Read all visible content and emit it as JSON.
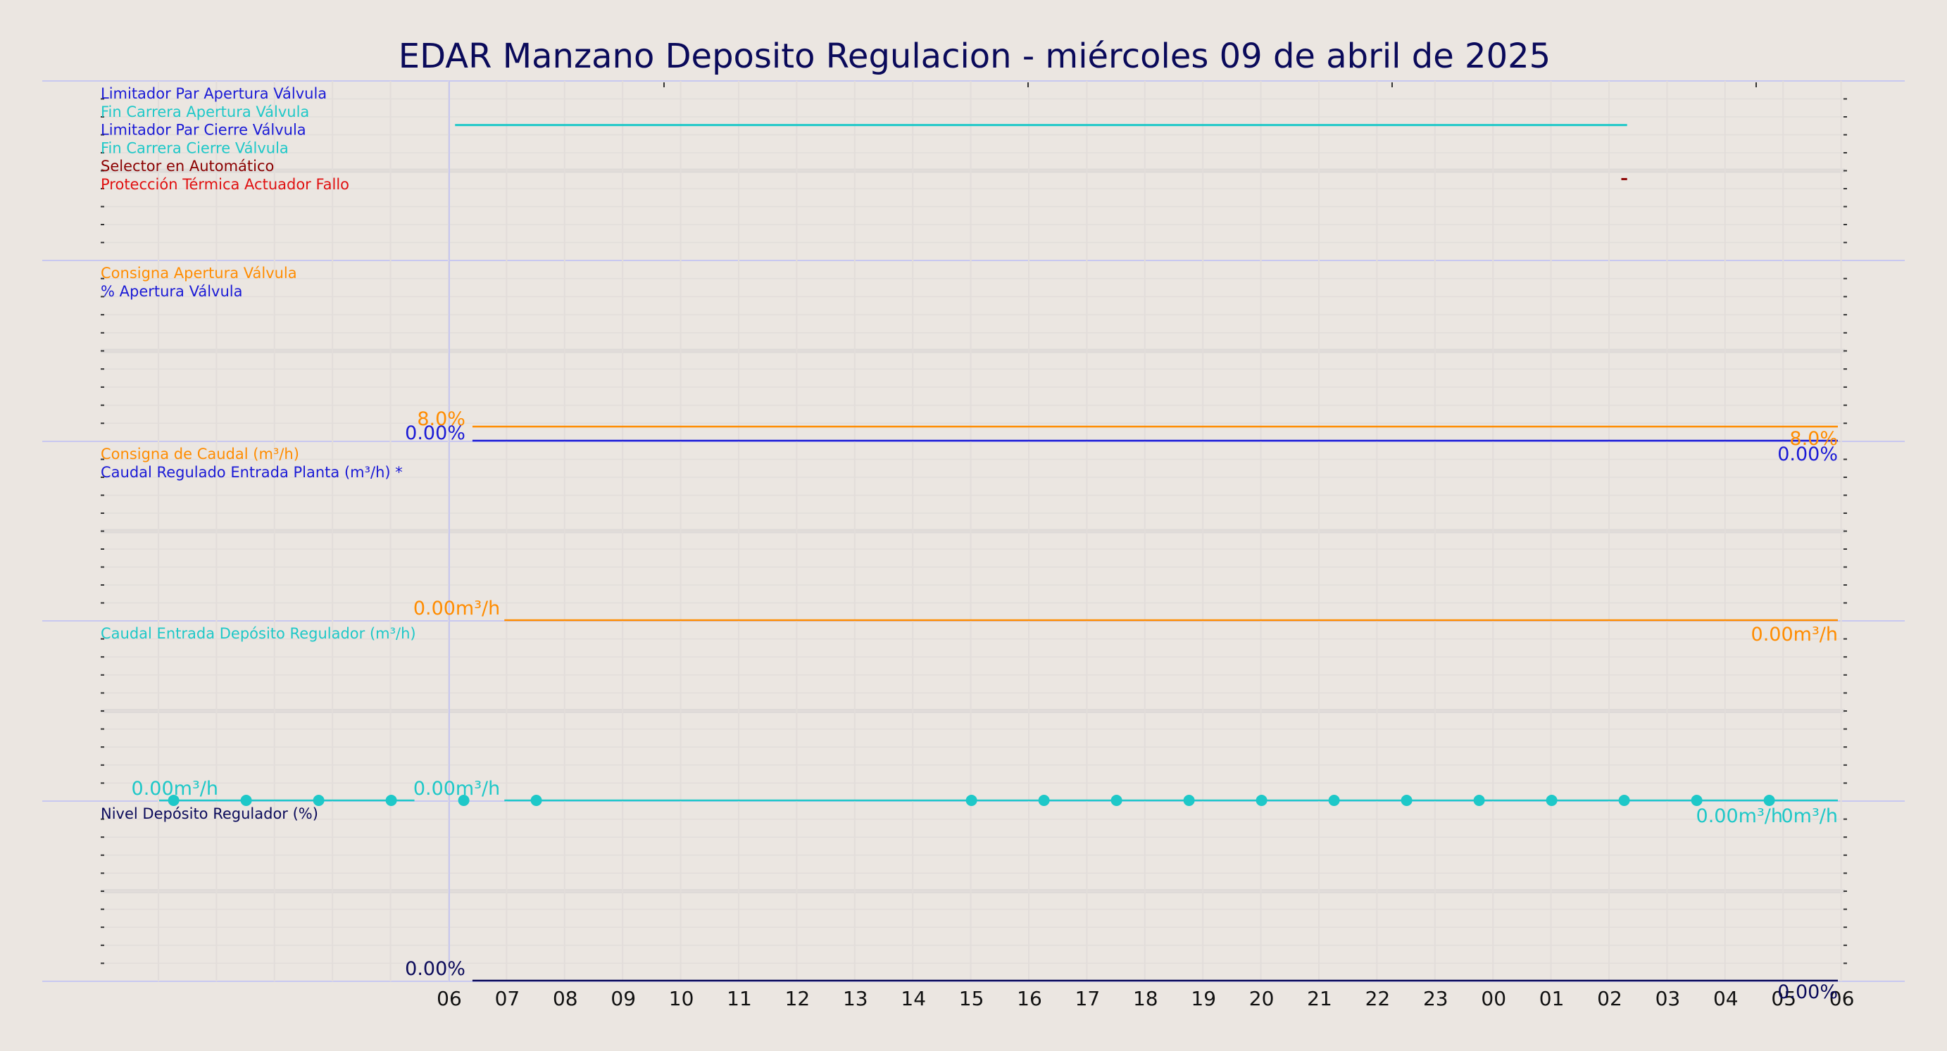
{
  "chart_data": [
    {
      "type": "line",
      "title": "EDAR Manzano Deposito Regulacion   -   miércoles 09 de abril de 2025",
      "x_axis_hours": [
        "06",
        "07",
        "08",
        "09",
        "10",
        "11",
        "12",
        "13",
        "14",
        "15",
        "16",
        "17",
        "18",
        "19",
        "20",
        "21",
        "22",
        "23",
        "00",
        "01",
        "02",
        "03",
        "04",
        "05",
        "06"
      ],
      "panels": [
        {
          "id": "digital",
          "legend": [
            {
              "label": "Limitador Par Apertura Válvula",
              "color": "#1a1ad6"
            },
            {
              "label": "Fin Carrera Apertura Válvula",
              "color": "#1ec8c8"
            },
            {
              "label": "Limitador Par Cierre Válvula",
              "color": "#1a1ad6"
            },
            {
              "label": "Fin Carrera Cierre Válvula",
              "color": "#1ec8c8"
            },
            {
              "label": "Selector en Automático",
              "color": "#8b0000"
            },
            {
              "label": "Protección Térmica Actuador Fallo",
              "color": "#e01010"
            }
          ],
          "series": [
            {
              "name": "Fin Carrera Apertura Válvula",
              "level": 1,
              "x_start": 0.1,
              "x_end": 20.3,
              "color": "#1ec8c8"
            },
            {
              "name": "Selector en Automático",
              "level": 4,
              "x_start": 20.2,
              "x_end": 20.3,
              "color": "#8b0000"
            }
          ]
        },
        {
          "id": "valve",
          "legend": [
            {
              "label": "Consigna Apertura Válvula",
              "color": "#ff8c00"
            },
            {
              "label": "% Apertura Válvula",
              "color": "#1a1ad6"
            }
          ],
          "series": [
            {
              "name": "Consigna Apertura Válvula",
              "value": 8.0,
              "color": "#ff8c00",
              "label_start": "8.0%",
              "label_end": "8.0%"
            },
            {
              "name": "% Apertura Válvula",
              "value": 0.0,
              "color": "#1a1ad6",
              "label_start": "0.00%",
              "label_end": "0.00%"
            }
          ],
          "ylim": [
            0,
            100
          ]
        },
        {
          "id": "flow",
          "legend": [
            {
              "label": "Consigna de Caudal (m³/h)",
              "color": "#ff8c00"
            },
            {
              "label": "Caudal Regulado Entrada Planta (m³/h) *",
              "color": "#1a1ad6"
            }
          ],
          "series": [
            {
              "name": "Consigna de Caudal (m³/h)",
              "value": 0.0,
              "color": "#ff8c00",
              "label_start": "0.00m³/h",
              "label_end": "0.00m³/h"
            }
          ]
        },
        {
          "id": "inflow",
          "legend": [
            {
              "label": "Caudal Entrada Depósito Regulador (m³/h)",
              "color": "#1ec8c8"
            }
          ],
          "series": [
            {
              "name": "Caudal Entrada Depósito Regulador (m³/h)",
              "value": 0.0,
              "color": "#1ec8c8",
              "label_start": "0.00m³/h",
              "label_pre": "0.00m³/h",
              "label_end": "0.00m³/h",
              "label_end2": "0m³/h",
              "points_x": [
                -4.75,
                -3.5,
                -2.25,
                -1.0,
                0.25,
                1.5,
                9.0,
                10.25,
                11.5,
                12.75,
                14.0,
                15.25,
                16.5,
                17.75,
                19.0,
                20.25,
                21.5,
                22.75
              ]
            }
          ]
        },
        {
          "id": "level",
          "legend": [
            {
              "label": "Nivel Depósito Regulador (%)",
              "color": "#0a0a5a"
            }
          ],
          "series": [
            {
              "name": "Nivel Depósito Regulador (%)",
              "value": 0.0,
              "color": "#0a0a5a",
              "label_start": "0.00%",
              "label_end": "0.00%"
            }
          ]
        }
      ]
    }
  ]
}
